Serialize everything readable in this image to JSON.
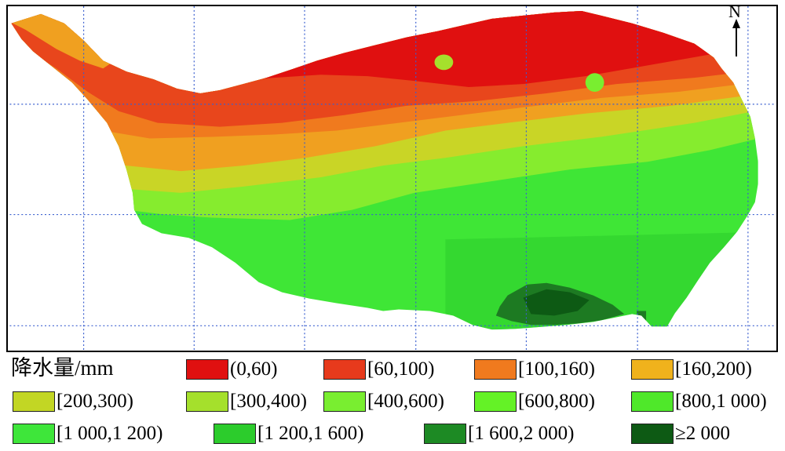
{
  "map": {
    "north_label": "N",
    "legend_title": "降水量/mm",
    "classes": [
      {
        "label": "(0,60)",
        "color": "#e01010"
      },
      {
        "label": "[60,100)",
        "color": "#e73a1c"
      },
      {
        "label": "[100,160)",
        "color": "#f07a1e"
      },
      {
        "label": "[160,200)",
        "color": "#f0b21c"
      },
      {
        "label": "[200,300)",
        "color": "#c2d624"
      },
      {
        "label": "[300,400)",
        "color": "#a5e02c"
      },
      {
        "label": "[400,600)",
        "color": "#79ee30"
      },
      {
        "label": "[600,800)",
        "color": "#64f226"
      },
      {
        "label": "[800,1 000)",
        "color": "#4fe82a"
      },
      {
        "label": "[1 000,1 200)",
        "color": "#3ee63a"
      },
      {
        "label": "[1 200,1 600)",
        "color": "#2ccc2c"
      },
      {
        "label": "[1 600,2 000)",
        "color": "#1d8a24"
      },
      {
        "label": "≥2 000",
        "color": "#0d5a14"
      }
    ]
  }
}
